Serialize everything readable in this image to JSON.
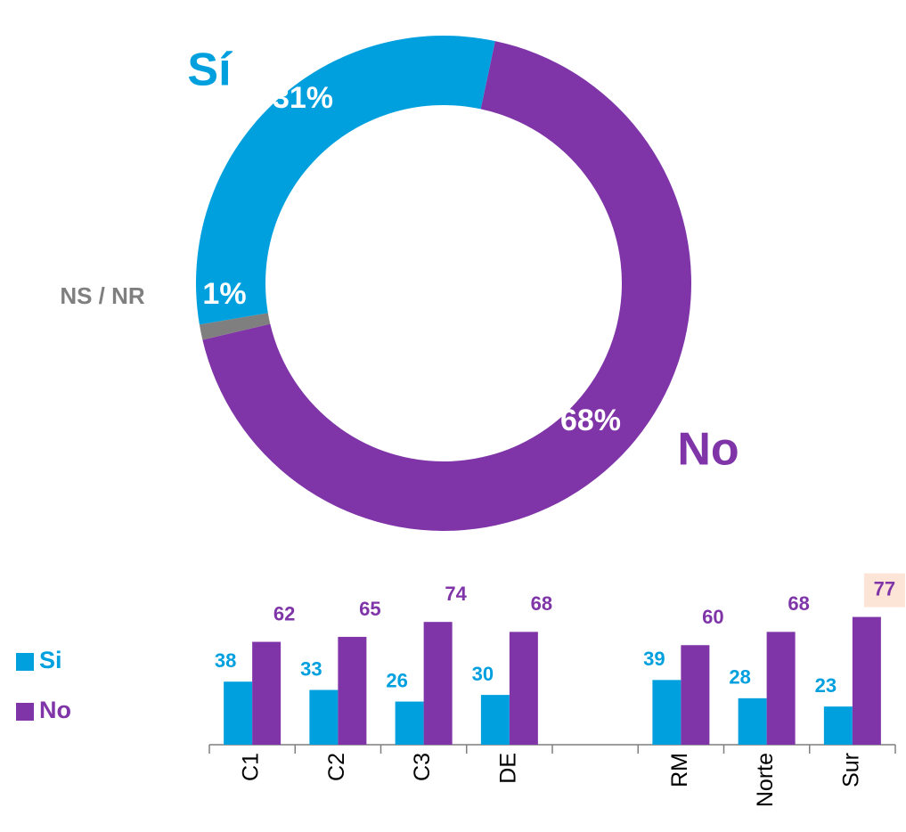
{
  "chart_data": [
    {
      "type": "donut",
      "categories": [
        "No",
        "NS / NR",
        "Sí"
      ],
      "values": [
        68,
        1,
        31
      ],
      "value_labels": [
        "68%",
        "1%",
        "31%"
      ],
      "colors": [
        "#7f35a8",
        "#7f7f7f",
        "#00a0df"
      ]
    },
    {
      "type": "bar",
      "categories": [
        "C1",
        "C2",
        "C3",
        "DE",
        null,
        "RM",
        "Norte",
        "Sur"
      ],
      "series": [
        {
          "name": "Si",
          "color": "#00a0df",
          "values": [
            38,
            33,
            26,
            30,
            null,
            39,
            28,
            23
          ]
        },
        {
          "name": "No",
          "color": "#7f35a8",
          "values": [
            62,
            65,
            74,
            68,
            null,
            60,
            68,
            77
          ]
        }
      ],
      "ylim": [
        0,
        80
      ],
      "legend": "left",
      "highlight": {
        "category": 7,
        "color": "#fce4d6"
      }
    }
  ]
}
